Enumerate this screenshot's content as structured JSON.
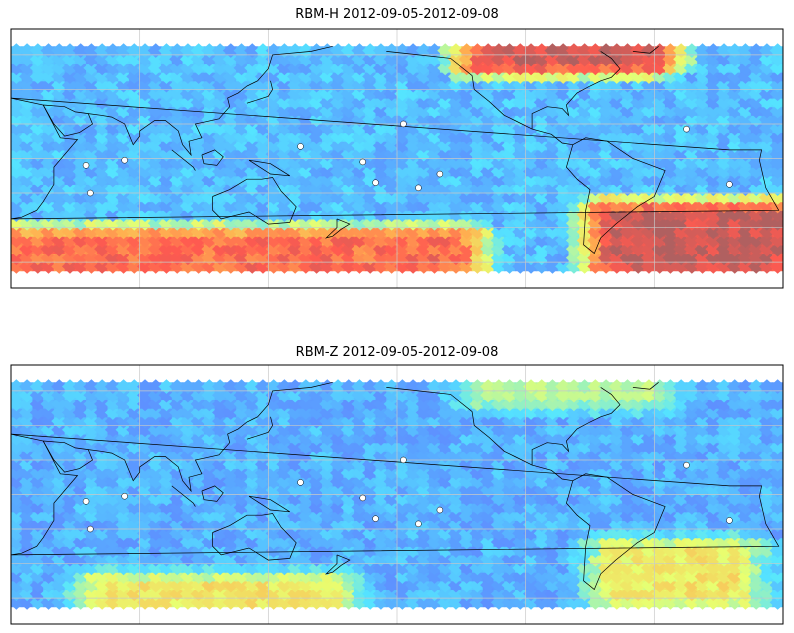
{
  "chart_data": [
    {
      "type": "heatmap",
      "title": "RBM-H 2012-09-05-2012-09-08",
      "xlabel": "",
      "ylabel": "",
      "map_projection": "equirectangular",
      "lon_range": [
        20,
        380
      ],
      "lat_range": [
        -75,
        75
      ],
      "data_lat_range": [
        -65,
        65
      ],
      "grid": true,
      "colormap": [
        "#6a6aff",
        "#5aa0ff",
        "#55e6ff",
        "#e8ff70",
        "#ffb050",
        "#ff5a50",
        "#b06060"
      ],
      "value_range": [
        0,
        1
      ],
      "features": [
        {
          "name": "zonal blue background",
          "lat": [
            -45,
            55
          ],
          "lon": [
            20,
            380
          ],
          "value": 0.15
        },
        {
          "name": "south band",
          "lat": [
            -65,
            -45
          ],
          "lon": [
            20,
            230
          ],
          "value": 0.8
        },
        {
          "name": "south-east anomaly",
          "lat": [
            -65,
            -30
          ],
          "lon": [
            300,
            380
          ],
          "value": 0.95
        },
        {
          "name": "north Atlantic anomaly",
          "lat": [
            55,
            65
          ],
          "lon": [
            240,
            320
          ],
          "value": 0.95
        }
      ]
    },
    {
      "type": "heatmap",
      "title": "RBM-Z 2012-09-05-2012-09-08",
      "xlabel": "",
      "ylabel": "",
      "map_projection": "equirectangular",
      "lon_range": [
        20,
        380
      ],
      "lat_range": [
        -75,
        75
      ],
      "data_lat_range": [
        -65,
        65
      ],
      "grid": true,
      "colormap": [
        "#6a6aff",
        "#5aa0ff",
        "#55e6ff",
        "#e8ff70",
        "#ffb050",
        "#ff5a50",
        "#b06060"
      ],
      "value_range": [
        0,
        1
      ],
      "features": [
        {
          "name": "zonal blue background",
          "lat": [
            -45,
            55
          ],
          "lon": [
            20,
            380
          ],
          "value": 0.12
        },
        {
          "name": "south band",
          "lat": [
            -65,
            -50
          ],
          "lon": [
            60,
            170
          ],
          "value": 0.55
        },
        {
          "name": "south-east anomaly",
          "lat": [
            -60,
            -30
          ],
          "lon": [
            300,
            360
          ],
          "value": 0.55
        },
        {
          "name": "north Atlantic anomaly",
          "lat": [
            55,
            65
          ],
          "lon": [
            240,
            320
          ],
          "value": 0.45
        }
      ]
    }
  ]
}
